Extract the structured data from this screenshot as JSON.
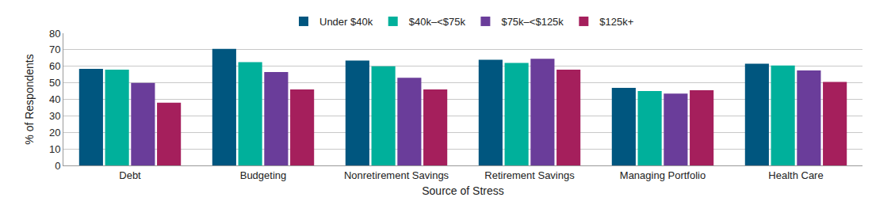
{
  "chart_data": {
    "type": "bar",
    "x_label": "Source of Stress",
    "y_label": "% of Respondents",
    "categories": [
      "Debt",
      "Budgeting",
      "Nonretirement Savings",
      "Retirement Savings",
      "Managing Portfolio",
      "Health Care"
    ],
    "series": [
      {
        "name": "Under $40k",
        "color": "#00567f",
        "values": [
          58.5,
          70.5,
          63.5,
          64,
          47,
          61.5
        ]
      },
      {
        "name": "$40k–<$75k",
        "color": "#00b09b",
        "values": [
          58,
          62.5,
          60,
          62,
          45,
          60.5
        ]
      },
      {
        "name": "$75k–<$125k",
        "color": "#6a3d9a",
        "values": [
          50,
          56.5,
          53,
          64.5,
          43.5,
          57.5
        ]
      },
      {
        "name": "$125k+",
        "color": "#a51f5c",
        "values": [
          38,
          46,
          46,
          58,
          45.5,
          50.5
        ]
      }
    ],
    "ylim": [
      0,
      80
    ],
    "yticks": [
      0,
      10,
      20,
      30,
      40,
      50,
      60,
      70,
      80
    ],
    "grid": true,
    "legend": "top"
  }
}
